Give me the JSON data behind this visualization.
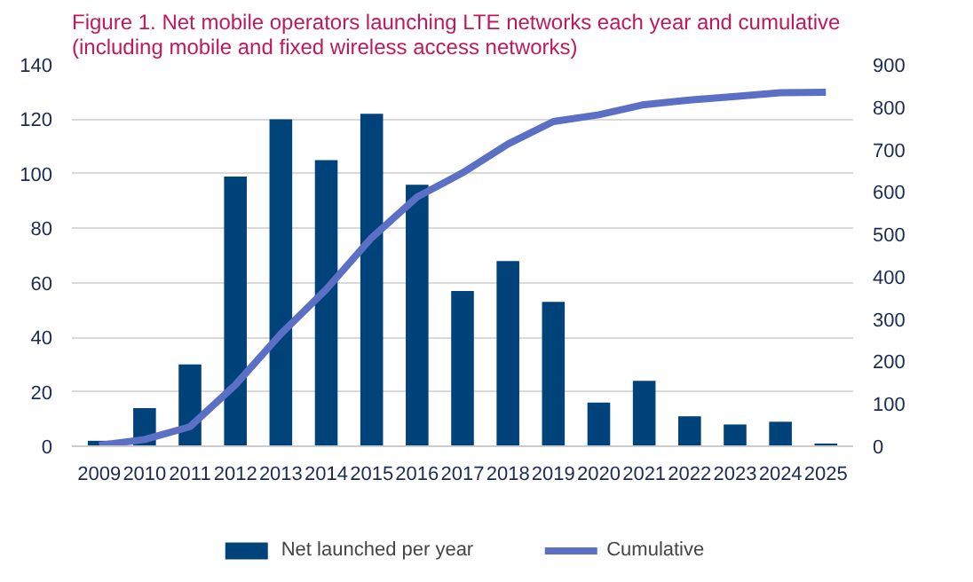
{
  "chart_data": {
    "type": "bar",
    "title": "Figure 1. Net mobile operators launching LTE networks each year and cumulative (including mobile and fixed wireless access networks)",
    "categories": [
      "2009",
      "2010",
      "2011",
      "2012",
      "2013",
      "2014",
      "2015",
      "2016",
      "2017",
      "2018",
      "2019",
      "2020",
      "2021",
      "2022",
      "2023",
      "2024",
      "2025"
    ],
    "series": [
      {
        "name": "Net launched per year",
        "color": "#00427a",
        "values": [
          2,
          14,
          30,
          99,
          120,
          105,
          122,
          96,
          57,
          68,
          53,
          16,
          24,
          11,
          8,
          9,
          1
        ]
      },
      {
        "name": "Cumulative",
        "type": "line",
        "axis": "y2",
        "color": "#5b6fc4",
        "values": [
          2,
          16,
          46,
          145,
          265,
          370,
          492,
          588,
          645,
          713,
          766,
          782,
          806,
          817,
          825,
          834,
          835
        ]
      }
    ],
    "ylim": [
      0,
      140
    ],
    "yticks": [
      0,
      20,
      40,
      60,
      80,
      100,
      120,
      140
    ],
    "y2lim": [
      0,
      900
    ],
    "y2ticks": [
      0,
      100,
      200,
      300,
      400,
      500,
      600,
      700,
      800,
      900
    ],
    "grid": "y",
    "legend": "bottom"
  }
}
